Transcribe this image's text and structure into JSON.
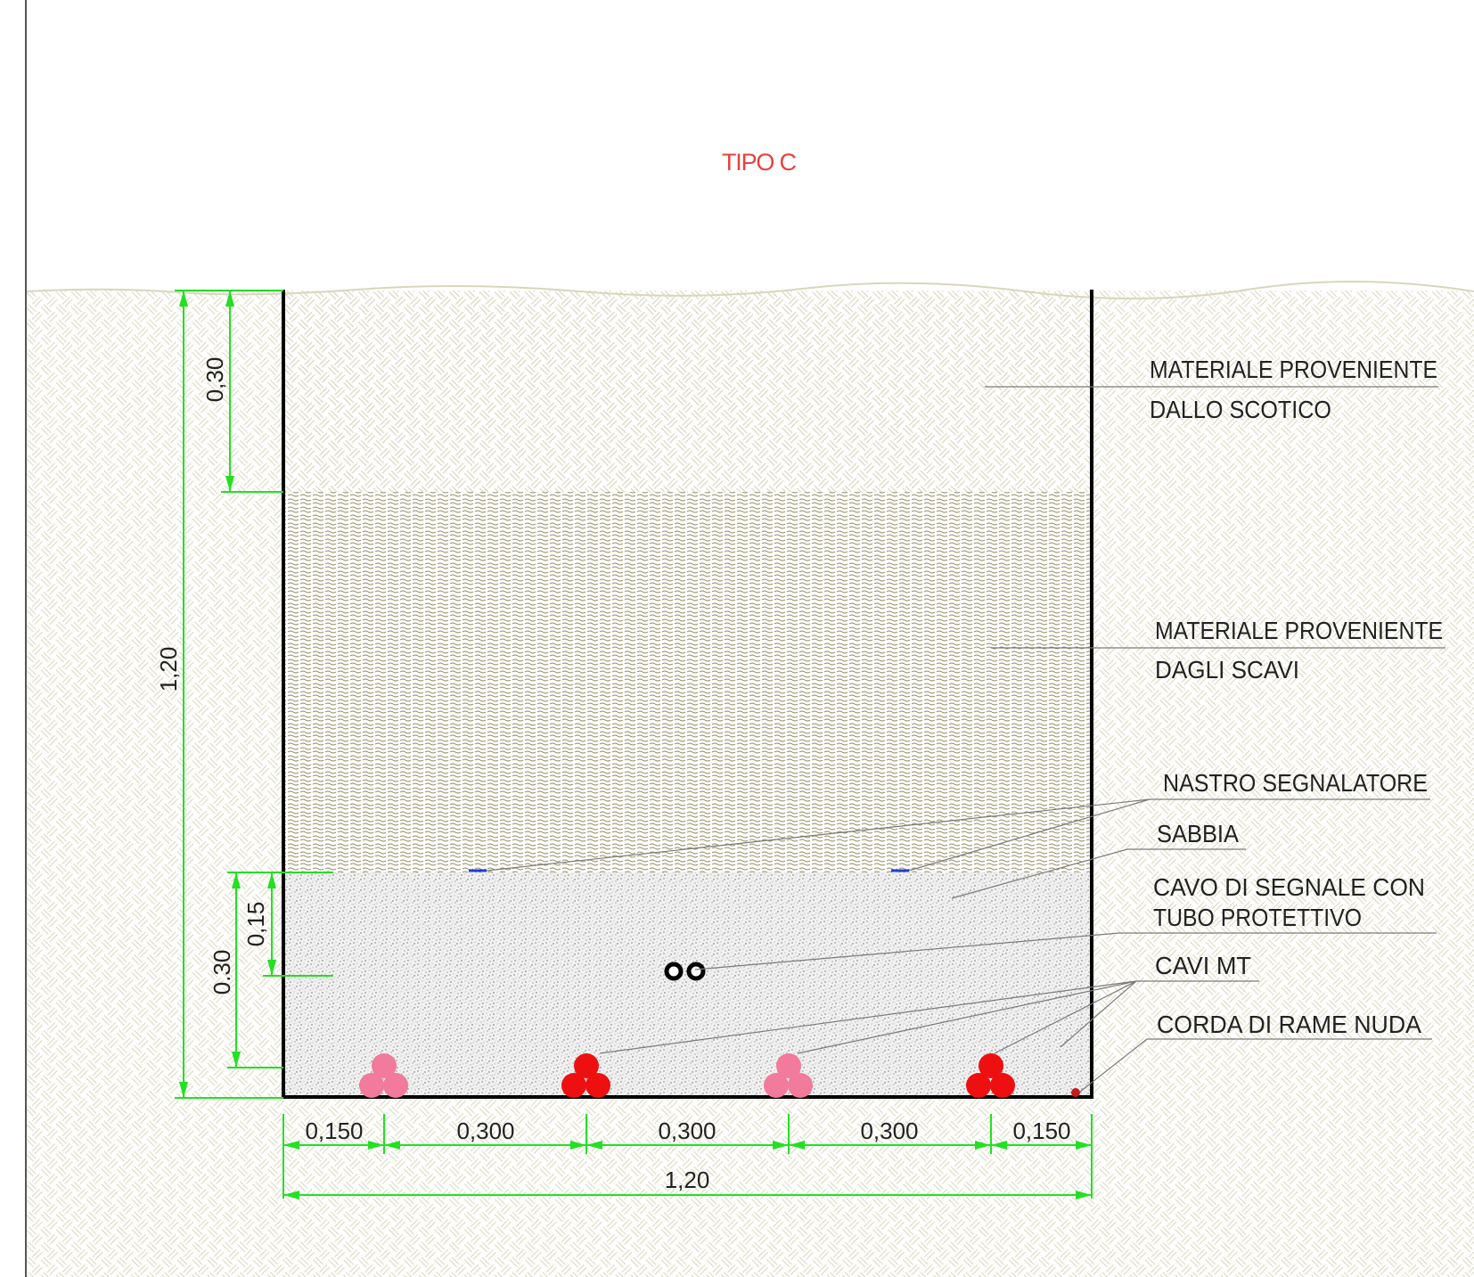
{
  "title": "TIPO C",
  "labels": {
    "scotico_1": "MATERIALE PROVENIENTE",
    "scotico_2": "DALLO SCOTICO",
    "scavi_1": "MATERIALE PROVENIENTE",
    "scavi_2": "DAGLI SCAVI",
    "nastro": "NASTRO SEGNALATORE",
    "sabbia": "SABBIA",
    "cavo_segnale_1": "CAVO DI SEGNALE CON",
    "cavo_segnale_2": "TUBO PROTETTIVO",
    "cavi_mt": "CAVI MT",
    "corda_rame": "CORDA DI RAME NUDA"
  },
  "dimensions": {
    "v_top": "0,30",
    "v_total": "1,20",
    "v_sand_upper": "0,15",
    "v_sand_total": "0.30",
    "h_1": "0,150",
    "h_2": "0,300",
    "h_3": "0,300",
    "h_4": "0,300",
    "h_5": "0,150",
    "h_total": "1,20"
  },
  "colors": {
    "title": "#e8413c",
    "dimension": "#22e022",
    "cable_light": "#f27a9a",
    "cable_dark": "#ee1010",
    "soil_hatch": "#d9d6bc",
    "fill_hatch": "#8f8a5f",
    "tape": "#1b3fd6",
    "leader": "#7a7a7a"
  }
}
